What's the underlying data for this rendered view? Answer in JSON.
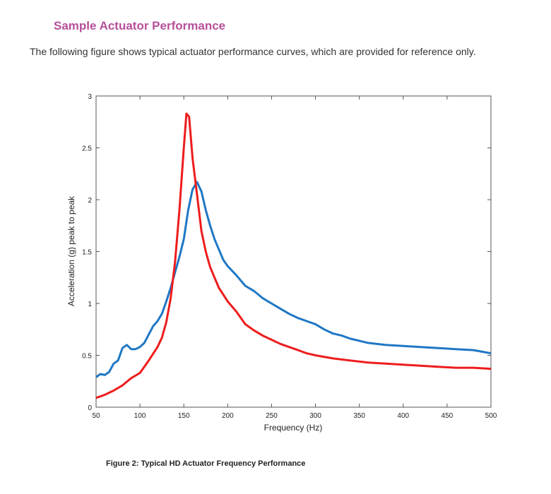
{
  "heading": "Sample Actuator Performance",
  "intro": "The following figure shows typical actuator performance curves, which are provided for reference only.",
  "caption": "Figure 2: Typical HD Actuator Frequency Performance",
  "chart_data": {
    "type": "line",
    "title": "",
    "xlabel": "Frequency (Hz)",
    "ylabel": "Acceleration (g) peak to peak",
    "xlim": [
      50,
      500
    ],
    "ylim": [
      0,
      3
    ],
    "xticks": [
      50,
      100,
      150,
      200,
      250,
      300,
      350,
      400,
      450,
      500
    ],
    "yticks": [
      0,
      0.5,
      1,
      1.5,
      2,
      2.5,
      3
    ],
    "ytick_labels": [
      "0",
      "0.5",
      "1",
      "1.5",
      "2",
      "2.5",
      "3"
    ],
    "grid": false,
    "series": [
      {
        "name": "blue",
        "color": "#1f77c4",
        "x": [
          50,
          55,
          60,
          65,
          70,
          75,
          80,
          85,
          90,
          95,
          100,
          105,
          110,
          115,
          120,
          125,
          130,
          135,
          140,
          145,
          150,
          155,
          160,
          165,
          170,
          175,
          180,
          185,
          190,
          195,
          200,
          210,
          220,
          230,
          240,
          250,
          260,
          270,
          280,
          290,
          300,
          310,
          320,
          330,
          340,
          350,
          360,
          380,
          400,
          420,
          440,
          460,
          480,
          500
        ],
        "y": [
          0.29,
          0.32,
          0.31,
          0.34,
          0.42,
          0.45,
          0.57,
          0.6,
          0.56,
          0.56,
          0.58,
          0.62,
          0.7,
          0.78,
          0.83,
          0.9,
          1.02,
          1.15,
          1.3,
          1.45,
          1.62,
          1.9,
          2.1,
          2.17,
          2.08,
          1.9,
          1.75,
          1.62,
          1.52,
          1.42,
          1.36,
          1.27,
          1.17,
          1.12,
          1.05,
          1.0,
          0.95,
          0.9,
          0.86,
          0.83,
          0.8,
          0.75,
          0.71,
          0.69,
          0.66,
          0.64,
          0.62,
          0.6,
          0.59,
          0.58,
          0.57,
          0.56,
          0.55,
          0.52
        ]
      },
      {
        "name": "red",
        "color": "#ee1c1c",
        "x": [
          50,
          60,
          70,
          80,
          90,
          100,
          110,
          120,
          125,
          130,
          135,
          140,
          145,
          150,
          153,
          156,
          160,
          165,
          170,
          175,
          180,
          190,
          200,
          210,
          220,
          230,
          240,
          250,
          260,
          270,
          280,
          290,
          300,
          320,
          340,
          360,
          380,
          400,
          420,
          440,
          460,
          480,
          500
        ],
        "y": [
          0.09,
          0.12,
          0.16,
          0.21,
          0.28,
          0.33,
          0.45,
          0.58,
          0.67,
          0.82,
          1.05,
          1.4,
          1.9,
          2.5,
          2.83,
          2.8,
          2.4,
          2.05,
          1.7,
          1.5,
          1.35,
          1.15,
          1.02,
          0.92,
          0.8,
          0.74,
          0.69,
          0.65,
          0.61,
          0.58,
          0.55,
          0.52,
          0.5,
          0.47,
          0.45,
          0.43,
          0.42,
          0.41,
          0.4,
          0.39,
          0.38,
          0.38,
          0.37
        ]
      }
    ]
  }
}
